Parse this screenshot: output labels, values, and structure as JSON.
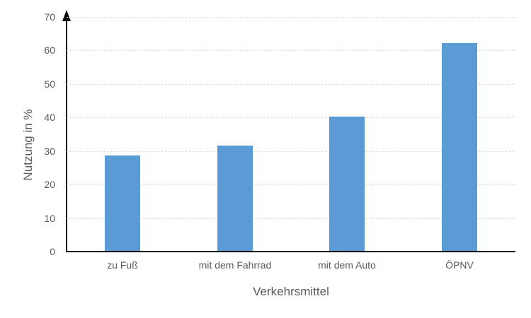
{
  "chart_data": {
    "type": "bar",
    "categories": [
      "zu Fuß",
      "mit dem Fahrrad",
      "mit dem Auto",
      "ÖPNV"
    ],
    "values": [
      28.4,
      31.5,
      40,
      62
    ],
    "title": "",
    "xlabel": "Verkehrsmittel",
    "ylabel": "Nutzung in %",
    "ylim": [
      0,
      70
    ],
    "yticks": [
      0,
      10,
      20,
      30,
      40,
      50,
      60,
      70
    ],
    "grid": true,
    "legend_position": "none",
    "bar_color": "#5B9BD5",
    "gridline_color": "#D9D9D9",
    "axis_color": "#000000",
    "text_color": "#595959"
  }
}
